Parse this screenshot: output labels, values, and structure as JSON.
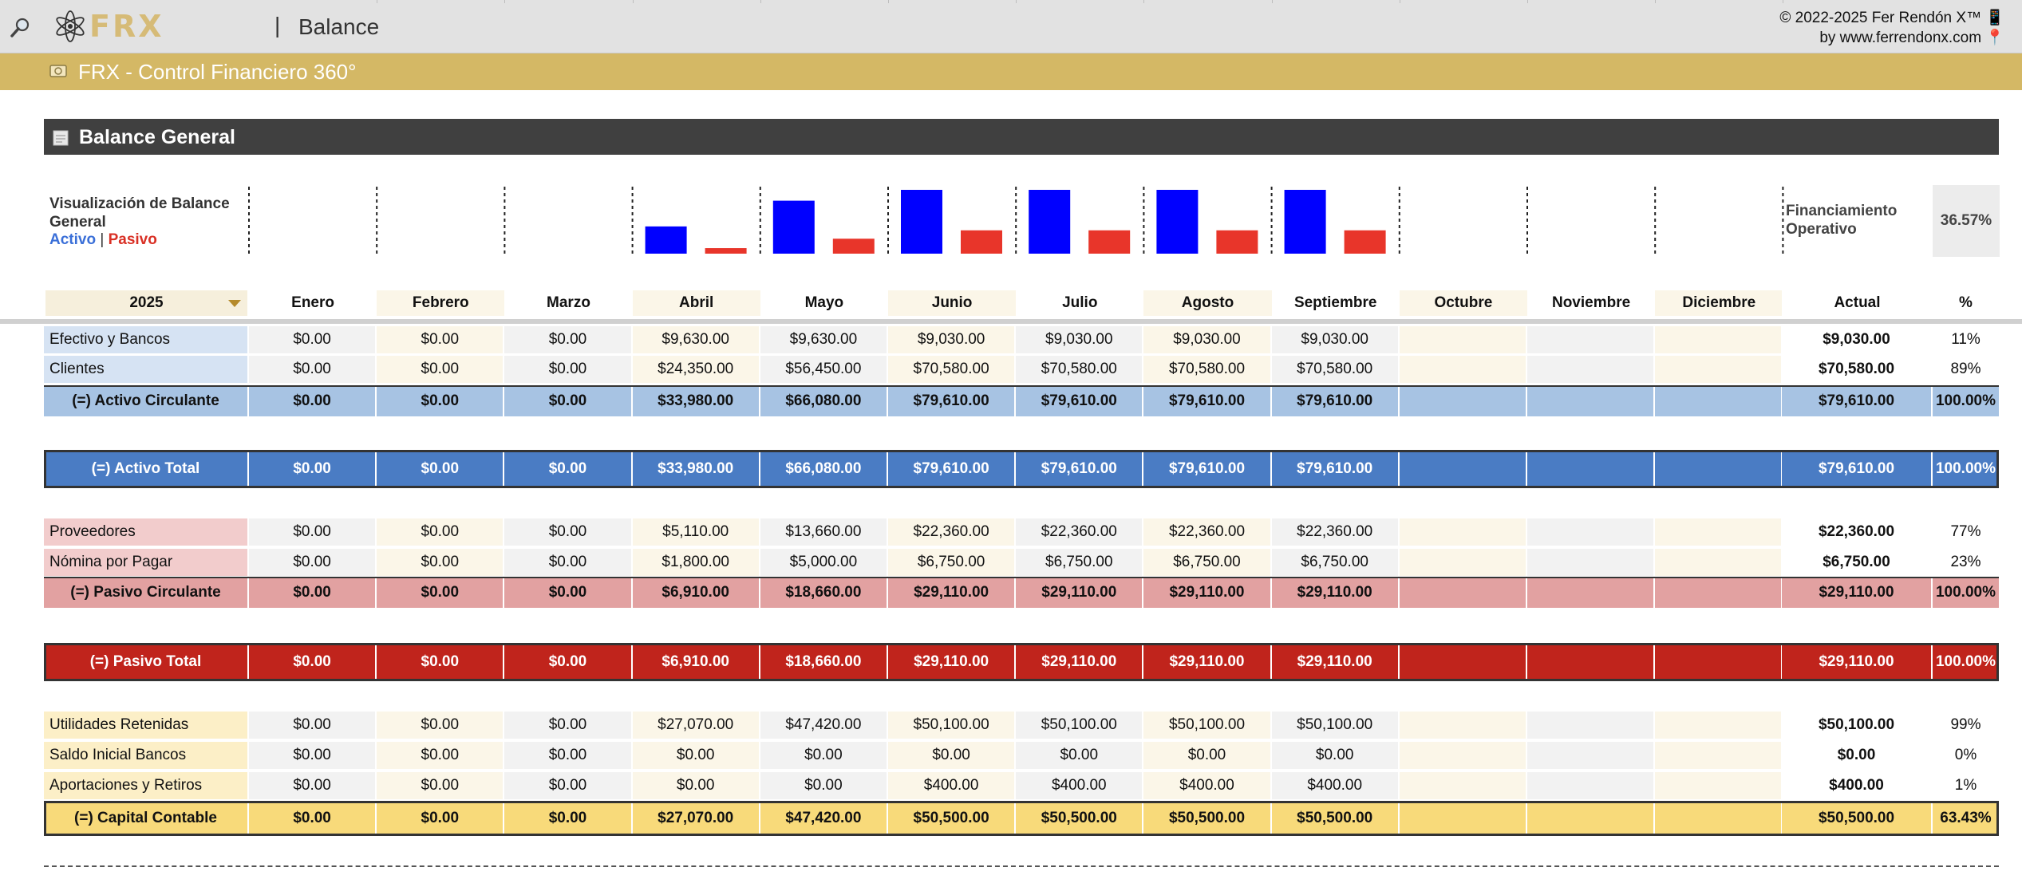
{
  "app": {
    "logo_text": "FRX",
    "separator": "|",
    "page_title": "Balance",
    "copyright_line1": "© 2022-2025 Fer Rendón X™ 📱",
    "copyright_line2": "by www.ferrendonx.com 📍",
    "banner_title": "FRX - Control Financiero 360°"
  },
  "section": {
    "title": "Balance General"
  },
  "visualization": {
    "title": "Visualización de Balance General",
    "legend_activo": "Activo",
    "legend_sep": "|",
    "legend_pasivo": "Pasivo",
    "colors": {
      "activo": "#0000ff",
      "pasivo": "#e8352a"
    }
  },
  "financing": {
    "label_line1": "Financiamiento",
    "label_line2": "Operativo",
    "value": "36.57%"
  },
  "chart_data": {
    "type": "bar",
    "categories": [
      "Enero",
      "Febrero",
      "Marzo",
      "Abril",
      "Mayo",
      "Junio",
      "Julio",
      "Agosto",
      "Septiembre",
      "Octubre",
      "Noviembre",
      "Diciembre"
    ],
    "series": [
      {
        "name": "Activo",
        "color": "#0000ff",
        "values": [
          0,
          0,
          0,
          33980,
          66080,
          79610,
          79610,
          79610,
          79610,
          0,
          0,
          0
        ]
      },
      {
        "name": "Pasivo",
        "color": "#e8352a",
        "values": [
          0,
          0,
          0,
          6910,
          18660,
          29110,
          29110,
          29110,
          29110,
          0,
          0,
          0
        ]
      }
    ],
    "ylim": [
      0,
      79610
    ]
  },
  "table": {
    "year": "2025",
    "headers": [
      "Enero",
      "Febrero",
      "Marzo",
      "Abril",
      "Mayo",
      "Junio",
      "Julio",
      "Agosto",
      "Septiembre",
      "Octubre",
      "Noviembre",
      "Diciembre",
      "Actual",
      "%"
    ],
    "rows": [
      {
        "label": "Efectivo y Bancos",
        "type": "asset",
        "values": [
          "$0.00",
          "$0.00",
          "$0.00",
          "$9,630.00",
          "$9,630.00",
          "$9,030.00",
          "$9,030.00",
          "$9,030.00",
          "$9,030.00",
          "",
          "",
          ""
        ],
        "actual": "$9,030.00",
        "pct": "11%"
      },
      {
        "label": "Clientes",
        "type": "asset",
        "values": [
          "$0.00",
          "$0.00",
          "$0.00",
          "$24,350.00",
          "$56,450.00",
          "$70,580.00",
          "$70,580.00",
          "$70,580.00",
          "$70,580.00",
          "",
          "",
          ""
        ],
        "actual": "$70,580.00",
        "pct": "89%"
      },
      {
        "label": "(=) Activo Circulante",
        "type": "asset-sub",
        "values": [
          "$0.00",
          "$0.00",
          "$0.00",
          "$33,980.00",
          "$66,080.00",
          "$79,610.00",
          "$79,610.00",
          "$79,610.00",
          "$79,610.00",
          "",
          "",
          ""
        ],
        "actual": "$79,610.00",
        "pct": "100.00%"
      },
      {
        "label": "(=) Activo Total",
        "type": "asset-total",
        "values": [
          "$0.00",
          "$0.00",
          "$0.00",
          "$33,980.00",
          "$66,080.00",
          "$79,610.00",
          "$79,610.00",
          "$79,610.00",
          "$79,610.00",
          "",
          "",
          ""
        ],
        "actual": "$79,610.00",
        "pct": "100.00%"
      },
      {
        "label": "Proveedores",
        "type": "liab",
        "values": [
          "$0.00",
          "$0.00",
          "$0.00",
          "$5,110.00",
          "$13,660.00",
          "$22,360.00",
          "$22,360.00",
          "$22,360.00",
          "$22,360.00",
          "",
          "",
          ""
        ],
        "actual": "$22,360.00",
        "pct": "77%"
      },
      {
        "label": "Nómina por Pagar",
        "type": "liab",
        "values": [
          "$0.00",
          "$0.00",
          "$0.00",
          "$1,800.00",
          "$5,000.00",
          "$6,750.00",
          "$6,750.00",
          "$6,750.00",
          "$6,750.00",
          "",
          "",
          ""
        ],
        "actual": "$6,750.00",
        "pct": "23%"
      },
      {
        "label": "(=) Pasivo Circulante",
        "type": "liab-sub",
        "values": [
          "$0.00",
          "$0.00",
          "$0.00",
          "$6,910.00",
          "$18,660.00",
          "$29,110.00",
          "$29,110.00",
          "$29,110.00",
          "$29,110.00",
          "",
          "",
          ""
        ],
        "actual": "$29,110.00",
        "pct": "100.00%"
      },
      {
        "label": "(=) Pasivo Total",
        "type": "liab-total",
        "values": [
          "$0.00",
          "$0.00",
          "$0.00",
          "$6,910.00",
          "$18,660.00",
          "$29,110.00",
          "$29,110.00",
          "$29,110.00",
          "$29,110.00",
          "",
          "",
          ""
        ],
        "actual": "$29,110.00",
        "pct": "100.00%"
      },
      {
        "label": "Utilidades Retenidas",
        "type": "eq",
        "values": [
          "$0.00",
          "$0.00",
          "$0.00",
          "$27,070.00",
          "$47,420.00",
          "$50,100.00",
          "$50,100.00",
          "$50,100.00",
          "$50,100.00",
          "",
          "",
          ""
        ],
        "actual": "$50,100.00",
        "pct": "99%"
      },
      {
        "label": "Saldo Inicial Bancos",
        "type": "eq",
        "values": [
          "$0.00",
          "$0.00",
          "$0.00",
          "$0.00",
          "$0.00",
          "$0.00",
          "$0.00",
          "$0.00",
          "$0.00",
          "",
          "",
          ""
        ],
        "actual": "$0.00",
        "pct": "0%"
      },
      {
        "label": "Aportaciones y Retiros",
        "type": "eq",
        "values": [
          "$0.00",
          "$0.00",
          "$0.00",
          "$0.00",
          "$0.00",
          "$400.00",
          "$400.00",
          "$400.00",
          "$400.00",
          "",
          "",
          ""
        ],
        "actual": "$400.00",
        "pct": "1%"
      },
      {
        "label": "(=) Capital Contable",
        "type": "eq-total",
        "values": [
          "$0.00",
          "$0.00",
          "$0.00",
          "$27,070.00",
          "$47,420.00",
          "$50,500.00",
          "$50,500.00",
          "$50,500.00",
          "$50,500.00",
          "",
          "",
          ""
        ],
        "actual": "$50,500.00",
        "pct": "63.43%"
      }
    ]
  },
  "colors": {
    "gold": "#d4b865",
    "asset_label": "#d6e3f3",
    "asset_sub": "#a7c3e3",
    "asset_total": "#4a7cc4",
    "liab_label": "#f2cccc",
    "liab_sub": "#e2a1a1",
    "liab_total": "#c0241c",
    "eq_label": "#fcefc7",
    "eq_total": "#f8da7a",
    "month_cream": "#fbf6e8",
    "month_gray": "#f2f2f2"
  }
}
